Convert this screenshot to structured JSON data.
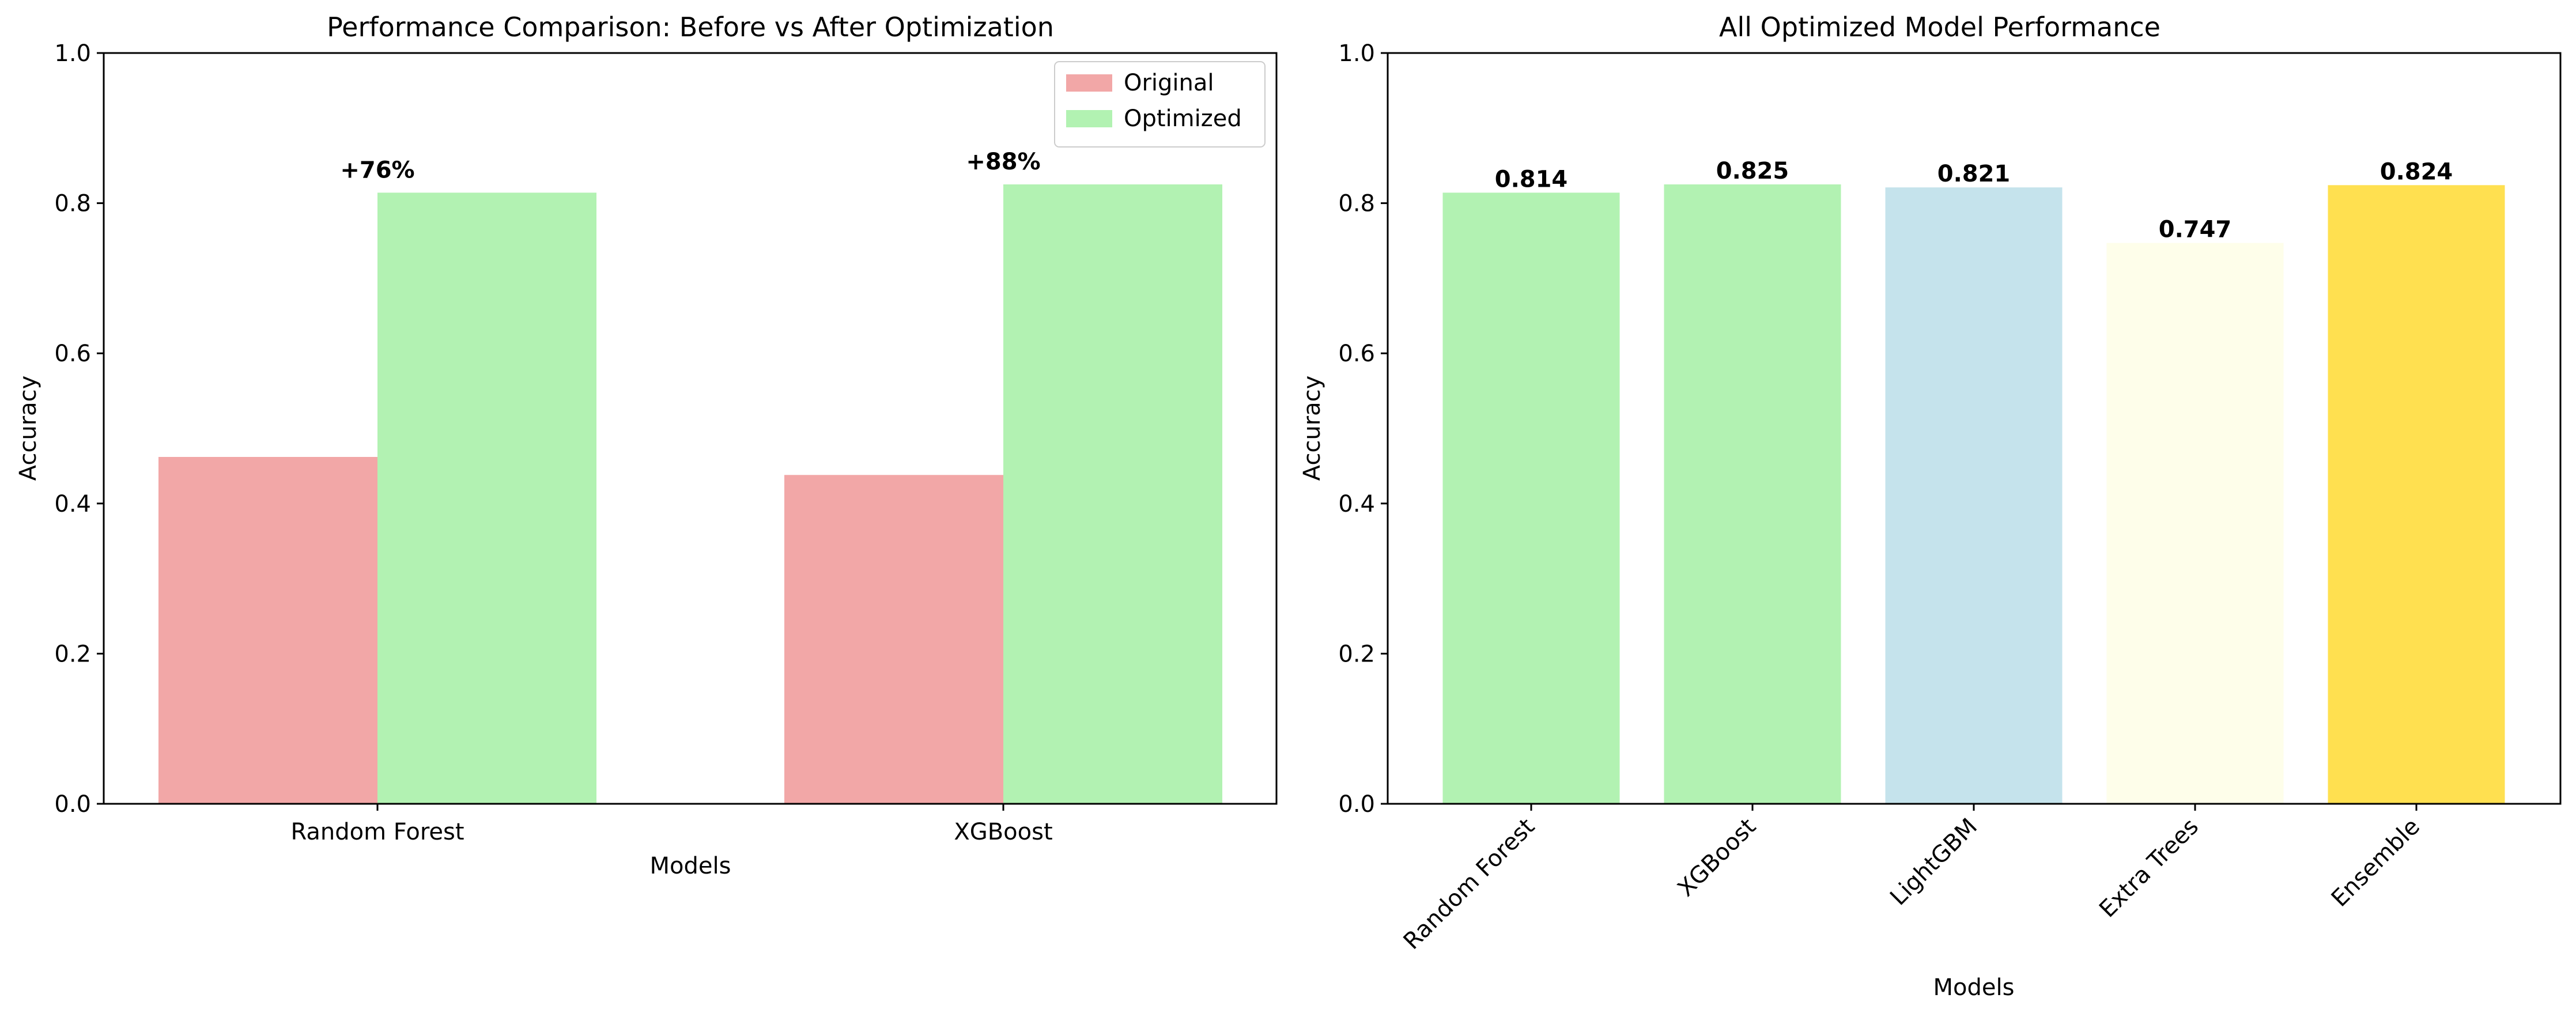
{
  "chart_data": [
    {
      "type": "bar",
      "title": "Performance Comparison: Before vs After Optimization",
      "xlabel": "Models",
      "ylabel": "Accuracy",
      "ylim": [
        0,
        1.0
      ],
      "yticks": [
        "0.0",
        "0.2",
        "0.4",
        "0.6",
        "0.8",
        "1.0"
      ],
      "categories": [
        "Random Forest",
        "XGBoost"
      ],
      "series": [
        {
          "name": "Original",
          "values": [
            0.462,
            0.438
          ],
          "color": "#f2a7a7"
        },
        {
          "name": "Optimized",
          "values": [
            0.814,
            0.825
          ],
          "color": "#b2f2b2"
        }
      ],
      "annotations": [
        "+76%",
        "+88%"
      ],
      "legend": "top-right",
      "grid": false
    },
    {
      "type": "bar",
      "title": "All Optimized Model Performance",
      "xlabel": "Models",
      "ylabel": "Accuracy",
      "ylim": [
        0,
        1.0
      ],
      "yticks": [
        "0.0",
        "0.2",
        "0.4",
        "0.6",
        "0.8",
        "1.0"
      ],
      "categories": [
        "Random Forest",
        "XGBoost",
        "LightGBM",
        "Extra Trees",
        "Ensemble"
      ],
      "values": [
        0.814,
        0.825,
        0.821,
        0.747,
        0.824
      ],
      "value_labels": [
        "0.814",
        "0.825",
        "0.821",
        "0.747",
        "0.824"
      ],
      "colors": [
        "#b2f2b2",
        "#b2f2b2",
        "#c5e3ec",
        "#fefeea",
        "#ffe050"
      ],
      "tick_rotation_deg": 45,
      "grid": false
    }
  ]
}
